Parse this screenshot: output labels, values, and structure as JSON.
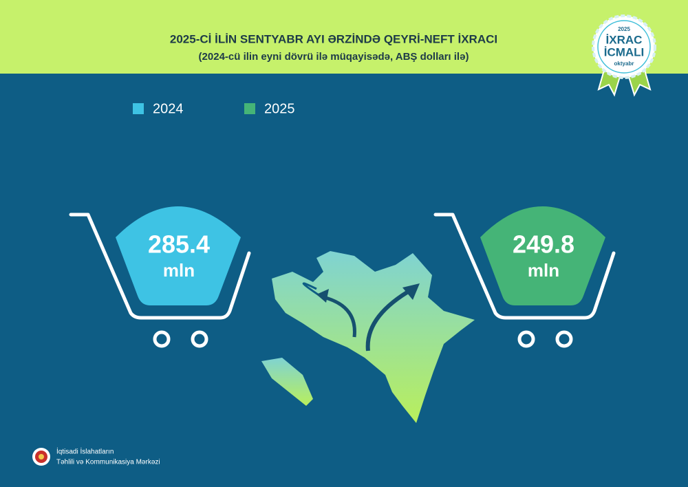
{
  "header": {
    "title": "2025-Cİ İLİN SENTYABR AYI ƏRZİNDƏ QEYRİ-NEFT İXRACI",
    "subtitle": "(2024-cü ilin eyni dövrü ilə müqayisədə, ABŞ dolları ilə)"
  },
  "badge": {
    "year": "2025",
    "line1": "İXRAC",
    "line2": "İCMALI",
    "month": "oktyabr"
  },
  "items": [
    {
      "name": "2024",
      "color": "#3ec3e4",
      "value": 285.4,
      "unit": "mln"
    },
    {
      "name": "2025",
      "color": "#45b477",
      "value": 249.8,
      "unit": "mln"
    }
  ],
  "footer": {
    "line1": "İqtisadi İslahatların",
    "line2": "Təhlili və Kommunikasiya Mərkəzi"
  }
}
